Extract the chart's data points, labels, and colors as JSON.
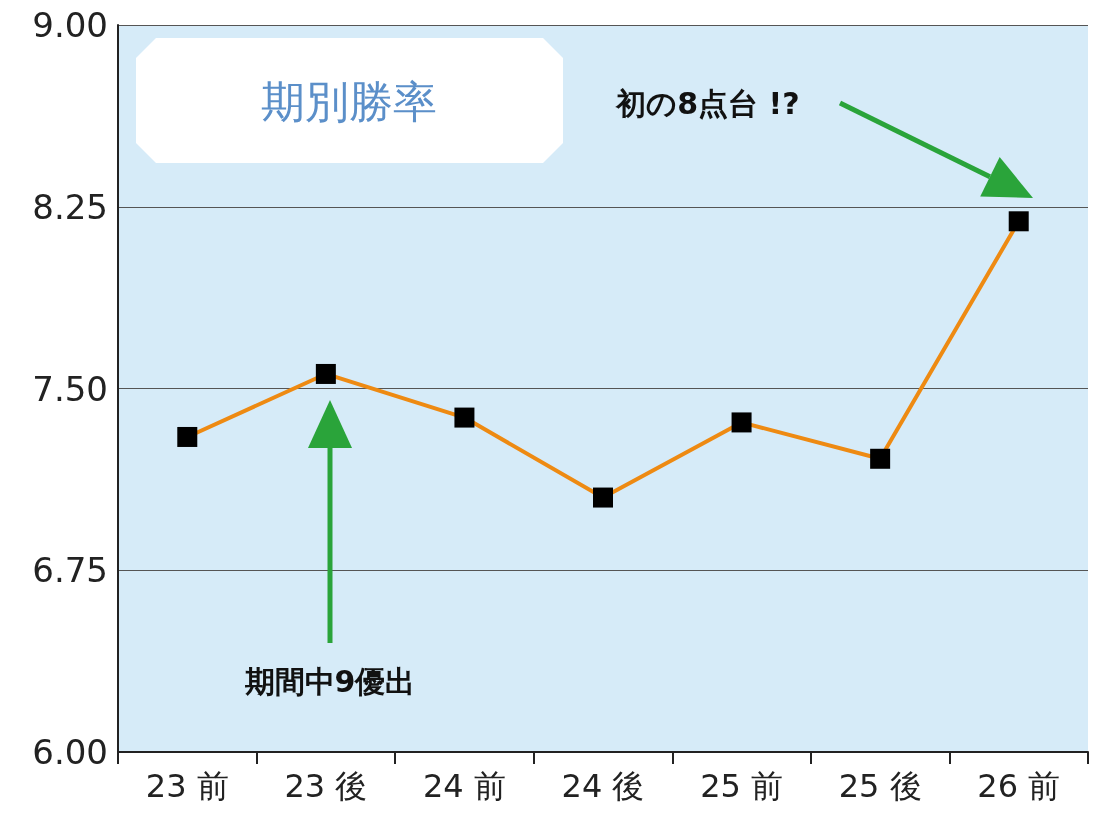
{
  "chart_data": {
    "type": "line",
    "title": "期別勝率",
    "categories": [
      "23 前",
      "23 後",
      "24 前",
      "24 後",
      "25 前",
      "25 後",
      "26 前"
    ],
    "series": [
      {
        "color": "#ee8a12",
        "values": [
          7.3,
          7.56,
          7.38,
          7.05,
          7.36,
          7.21,
          8.19
        ]
      }
    ],
    "ylim": [
      6,
      9
    ],
    "yticks": [
      {
        "value": 6,
        "label": "6.00"
      },
      {
        "value": 6.75,
        "label": "6.75"
      },
      {
        "value": 7.5,
        "label": "7.50"
      },
      {
        "value": 8.25,
        "label": "8.25"
      },
      {
        "value": 9,
        "label": "9.00"
      }
    ],
    "grid": "y",
    "marker": "square",
    "line_style": "solid",
    "annotations": [
      "期間中9優出",
      "初の8点台 !?"
    ]
  }
}
